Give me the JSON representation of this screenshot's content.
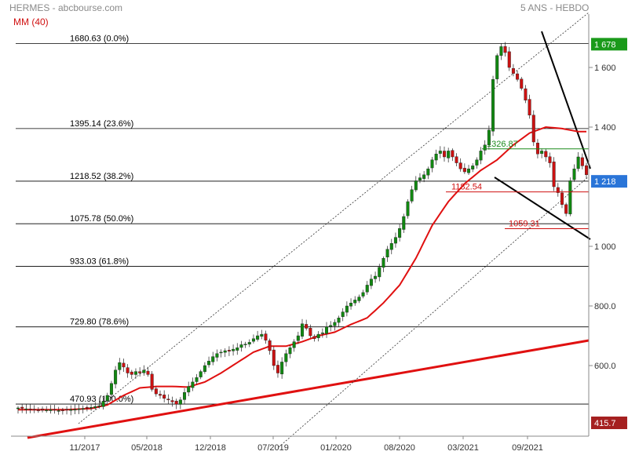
{
  "header": {
    "title": "HERMES - abcbourse.com",
    "indicator": "MM (40)",
    "period": "5 ANS - HEBDO"
  },
  "colors": {
    "candle_up": "#118811",
    "candle_down": "#cc1111",
    "ma": "#e01010",
    "trend": "#e01010",
    "badge_last": "#1a9a1a",
    "badge_cur": "#2a75d8",
    "badge_low": "#a52020",
    "level_green": "#1a8a1a",
    "level_red": "#d01010"
  },
  "chart_data": {
    "type": "candlestick",
    "ylim": [
      400,
      1740
    ],
    "y_ticks": [
      "1 600",
      "1 400",
      "1 000",
      "800.0",
      "600.0"
    ],
    "y_tick_values": [
      1600,
      1400,
      1000,
      800,
      600
    ],
    "x_ticks": [
      "11/2017",
      "05/2018",
      "12/2018",
      "07/2019",
      "01/2020",
      "08/2020",
      "03/2021",
      "09/2021"
    ],
    "fibonacci": [
      {
        "price": 1680.63,
        "label": "1680.63  (0.0%)"
      },
      {
        "price": 1395.14,
        "label": "1395.14  (23.6%)"
      },
      {
        "price": 1218.52,
        "label": "1218.52  (38.2%)"
      },
      {
        "price": 1075.78,
        "label": "1075.78  (50.0%)"
      },
      {
        "price": 933.03,
        "label": "933.03  (61.8%)"
      },
      {
        "price": 729.8,
        "label": "729.80  (78.6%)"
      },
      {
        "price": 470.93,
        "label": "470.93  (100.0%)"
      }
    ],
    "levels": [
      {
        "price": 1326.87,
        "label": "1326.87",
        "color": "green"
      },
      {
        "price": 1182.54,
        "label": "1182.54",
        "color": "red"
      },
      {
        "price": 1059.31,
        "label": "1059.31",
        "color": "red"
      }
    ],
    "badges": [
      {
        "price": 1678,
        "label": "1 678",
        "kind": "last"
      },
      {
        "price": 1218,
        "label": "1 218",
        "kind": "cur"
      },
      {
        "price": 415.7,
        "label": "415.7",
        "kind": "low"
      }
    ],
    "close_path": [
      [
        0,
        458
      ],
      [
        2,
        455
      ],
      [
        4,
        452
      ],
      [
        6,
        450
      ],
      [
        8,
        452
      ],
      [
        10,
        449
      ],
      [
        12,
        452
      ],
      [
        14,
        453
      ],
      [
        16,
        456
      ],
      [
        18,
        460
      ],
      [
        20,
        465
      ],
      [
        21,
        480
      ],
      [
        22,
        500
      ],
      [
        23,
        540
      ],
      [
        24,
        585
      ],
      [
        25,
        610
      ],
      [
        26,
        595
      ],
      [
        27,
        575
      ],
      [
        28,
        570
      ],
      [
        29,
        580
      ],
      [
        30,
        575
      ],
      [
        31,
        585
      ],
      [
        32,
        570
      ],
      [
        33,
        520
      ],
      [
        34,
        505
      ],
      [
        35,
        500
      ],
      [
        36,
        490
      ],
      [
        37,
        485
      ],
      [
        38,
        478
      ],
      [
        39,
        470
      ],
      [
        40,
        485
      ],
      [
        41,
        510
      ],
      [
        42,
        530
      ],
      [
        43,
        545
      ],
      [
        44,
        560
      ],
      [
        45,
        580
      ],
      [
        46,
        600
      ],
      [
        47,
        615
      ],
      [
        48,
        630
      ],
      [
        49,
        640
      ],
      [
        50,
        645
      ],
      [
        51,
        650
      ],
      [
        52,
        648
      ],
      [
        53,
        655
      ],
      [
        54,
        660
      ],
      [
        55,
        670
      ],
      [
        56,
        672
      ],
      [
        57,
        678
      ],
      [
        58,
        690
      ],
      [
        59,
        700
      ],
      [
        60,
        705
      ],
      [
        61,
        685
      ],
      [
        62,
        650
      ],
      [
        63,
        600
      ],
      [
        64,
        575
      ],
      [
        65,
        612
      ],
      [
        66,
        640
      ],
      [
        67,
        660
      ],
      [
        68,
        680
      ],
      [
        69,
        700
      ],
      [
        70,
        740
      ],
      [
        71,
        725
      ],
      [
        72,
        700
      ],
      [
        73,
        690
      ],
      [
        74,
        705
      ],
      [
        75,
        710
      ],
      [
        76,
        730
      ],
      [
        77,
        735
      ],
      [
        78,
        745
      ],
      [
        79,
        760
      ],
      [
        80,
        780
      ],
      [
        81,
        800
      ],
      [
        82,
        810
      ],
      [
        83,
        820
      ],
      [
        84,
        830
      ],
      [
        85,
        845
      ],
      [
        86,
        870
      ],
      [
        87,
        890
      ],
      [
        88,
        900
      ],
      [
        89,
        930
      ],
      [
        90,
        960
      ],
      [
        91,
        990
      ],
      [
        92,
        1010
      ],
      [
        93,
        1030
      ],
      [
        94,
        1060
      ],
      [
        95,
        1100
      ],
      [
        96,
        1150
      ],
      [
        97,
        1190
      ],
      [
        98,
        1220
      ],
      [
        99,
        1230
      ],
      [
        100,
        1240
      ],
      [
        101,
        1260
      ],
      [
        102,
        1290
      ],
      [
        103,
        1310
      ],
      [
        104,
        1320
      ],
      [
        105,
        1300
      ],
      [
        106,
        1320
      ],
      [
        107,
        1300
      ],
      [
        108,
        1280
      ],
      [
        109,
        1260
      ],
      [
        110,
        1250
      ],
      [
        111,
        1260
      ],
      [
        112,
        1270
      ],
      [
        113,
        1290
      ],
      [
        114,
        1320
      ],
      [
        115,
        1340
      ],
      [
        116,
        1390
      ],
      [
        117,
        1560
      ],
      [
        118,
        1640
      ],
      [
        119,
        1670
      ],
      [
        120,
        1650
      ],
      [
        121,
        1600
      ],
      [
        122,
        1580
      ],
      [
        123,
        1560
      ],
      [
        124,
        1530
      ],
      [
        125,
        1490
      ],
      [
        126,
        1440
      ],
      [
        127,
        1350
      ],
      [
        128,
        1310
      ],
      [
        129,
        1320
      ],
      [
        130,
        1300
      ],
      [
        131,
        1280
      ],
      [
        132,
        1200
      ],
      [
        133,
        1180
      ],
      [
        134,
        1140
      ],
      [
        135,
        1110
      ],
      [
        136,
        1220
      ],
      [
        137,
        1260
      ],
      [
        138,
        1300
      ],
      [
        139,
        1270
      ],
      [
        140,
        1240
      ]
    ],
    "ma_path": [
      [
        0,
        452
      ],
      [
        12,
        452
      ],
      [
        18,
        456
      ],
      [
        22,
        468
      ],
      [
        26,
        500
      ],
      [
        30,
        525
      ],
      [
        34,
        530
      ],
      [
        38,
        530
      ],
      [
        42,
        528
      ],
      [
        46,
        545
      ],
      [
        50,
        575
      ],
      [
        54,
        610
      ],
      [
        58,
        645
      ],
      [
        62,
        665
      ],
      [
        66,
        665
      ],
      [
        70,
        680
      ],
      [
        74,
        700
      ],
      [
        78,
        712
      ],
      [
        82,
        738
      ],
      [
        86,
        760
      ],
      [
        90,
        810
      ],
      [
        94,
        870
      ],
      [
        98,
        960
      ],
      [
        102,
        1070
      ],
      [
        106,
        1150
      ],
      [
        110,
        1210
      ],
      [
        114,
        1255
      ],
      [
        118,
        1290
      ],
      [
        122,
        1340
      ],
      [
        126,
        1380
      ],
      [
        130,
        1400
      ],
      [
        134,
        1395
      ],
      [
        138,
        1385
      ],
      [
        140,
        1385
      ]
    ],
    "n_weeks": 141
  }
}
